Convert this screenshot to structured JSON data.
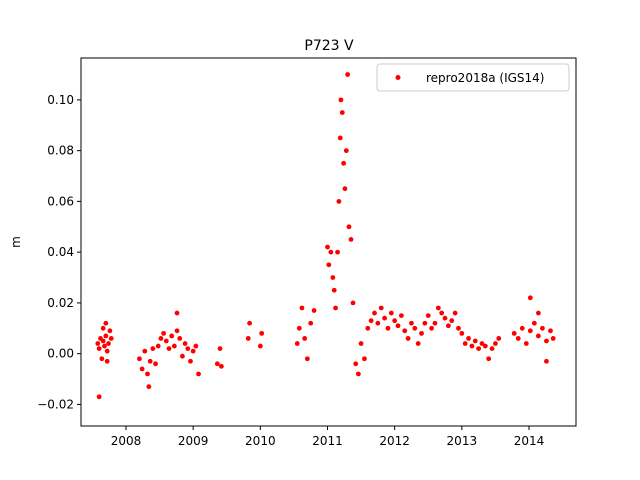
{
  "chart_data": {
    "type": "scatter",
    "title": "P723 V",
    "xlabel": "",
    "ylabel": "m",
    "xlim": [
      2007.33,
      2014.7
    ],
    "ylim": [
      -0.0285,
      0.1165
    ],
    "x_ticks": [
      "2008",
      "2009",
      "2010",
      "2011",
      "2012",
      "2013",
      "2014"
    ],
    "y_ticks": [
      "−0.02",
      "0.00",
      "0.02",
      "0.04",
      "0.06",
      "0.08",
      "0.10"
    ],
    "grid": false,
    "legend_position": "top-right",
    "series": [
      {
        "name": "repro2018a (IGS14)",
        "color": "#ff0000",
        "x": [
          2007.58,
          2007.6,
          2007.62,
          2007.64,
          2007.66,
          2007.68,
          2007.7,
          2007.72,
          2007.74,
          2007.76,
          2007.78,
          2007.6,
          2007.66,
          2007.72,
          2007.7,
          2008.2,
          2008.24,
          2008.28,
          2008.32,
          2008.36,
          2008.4,
          2008.44,
          2008.48,
          2008.52,
          2008.56,
          2008.6,
          2008.64,
          2008.68,
          2008.72,
          2008.76,
          2008.8,
          2008.84,
          2008.88,
          2008.92,
          2008.96,
          2009.0,
          2009.04,
          2009.08,
          2008.34,
          2008.76,
          2009.36,
          2009.4,
          2009.42,
          2009.82,
          2009.84,
          2010.0,
          2010.02,
          2010.55,
          2010.58,
          2010.62,
          2010.66,
          2010.7,
          2010.75,
          2010.8,
          2011.0,
          2011.02,
          2011.05,
          2011.08,
          2011.1,
          2011.12,
          2011.15,
          2011.17,
          2011.19,
          2011.2,
          2011.22,
          2011.24,
          2011.26,
          2011.28,
          2011.3,
          2011.32,
          2011.35,
          2011.38,
          2011.42,
          2011.46,
          2011.5,
          2011.55,
          2011.6,
          2011.65,
          2011.7,
          2011.75,
          2011.8,
          2011.85,
          2011.9,
          2011.95,
          2012.0,
          2012.05,
          2012.1,
          2012.15,
          2012.2,
          2012.25,
          2012.3,
          2012.35,
          2012.4,
          2012.45,
          2012.5,
          2012.55,
          2012.6,
          2012.65,
          2012.7,
          2012.75,
          2012.8,
          2012.85,
          2012.9,
          2012.95,
          2013.0,
          2013.05,
          2013.1,
          2013.15,
          2013.2,
          2013.25,
          2013.3,
          2013.35,
          2013.4,
          2013.45,
          2013.5,
          2013.55,
          2013.78,
          2013.84,
          2013.9,
          2013.96,
          2014.02,
          2014.08,
          2014.14,
          2014.2,
          2014.26,
          2014.32,
          2014.36,
          2014.02,
          2014.14,
          2014.26
        ],
        "y": [
          0.004,
          0.002,
          0.006,
          -0.002,
          0.005,
          0.003,
          0.007,
          0.001,
          0.004,
          0.009,
          0.006,
          -0.017,
          0.01,
          -0.003,
          0.012,
          -0.002,
          -0.006,
          0.001,
          -0.008,
          -0.003,
          0.002,
          -0.004,
          0.003,
          0.006,
          0.008,
          0.005,
          0.002,
          0.007,
          0.003,
          0.009,
          0.006,
          -0.001,
          0.004,
          0.002,
          -0.003,
          0.001,
          0.003,
          -0.008,
          -0.013,
          0.016,
          -0.004,
          0.002,
          -0.005,
          0.006,
          0.012,
          0.003,
          0.008,
          0.004,
          0.01,
          0.018,
          0.006,
          -0.002,
          0.012,
          0.017,
          0.042,
          0.035,
          0.04,
          0.03,
          0.025,
          0.018,
          0.04,
          0.06,
          0.085,
          0.1,
          0.095,
          0.075,
          0.065,
          0.08,
          0.11,
          0.05,
          0.045,
          0.02,
          -0.004,
          -0.008,
          0.004,
          -0.002,
          0.01,
          0.013,
          0.016,
          0.012,
          0.018,
          0.014,
          0.01,
          0.016,
          0.013,
          0.011,
          0.015,
          0.009,
          0.006,
          0.012,
          0.01,
          0.004,
          0.008,
          0.012,
          0.015,
          0.01,
          0.012,
          0.018,
          0.016,
          0.014,
          0.011,
          0.013,
          0.016,
          0.01,
          0.008,
          0.004,
          0.006,
          0.003,
          0.005,
          0.002,
          0.004,
          0.003,
          -0.002,
          0.002,
          0.004,
          0.006,
          0.008,
          0.006,
          0.01,
          0.004,
          0.009,
          0.012,
          0.007,
          0.01,
          0.005,
          0.009,
          0.006,
          0.022,
          0.016,
          -0.003
        ]
      }
    ]
  }
}
